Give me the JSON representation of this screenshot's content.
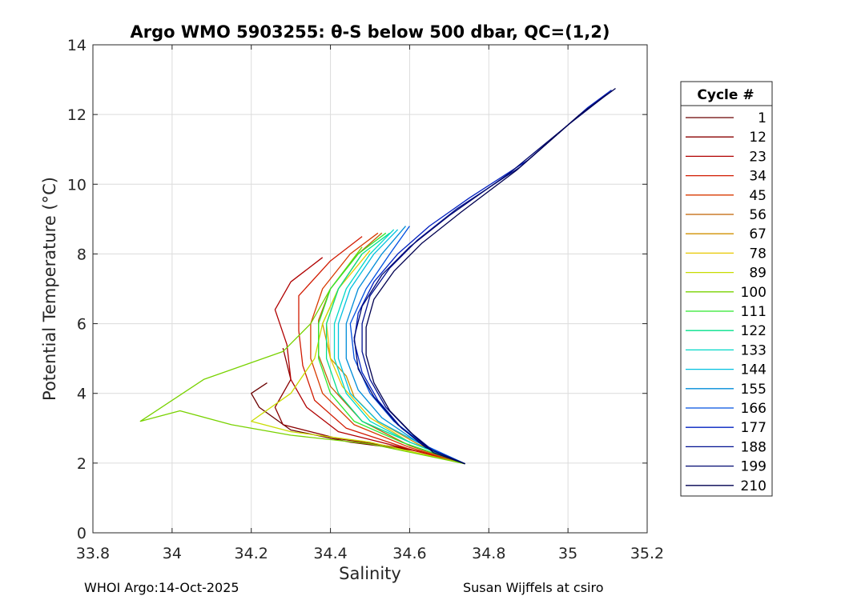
{
  "chart_data": {
    "type": "line",
    "title": "Argo WMO 5903255: θ-S below 500 dbar,  QC=(1,2)",
    "xlabel": "Salinity",
    "ylabel": "Potential Temperature (°C)",
    "xlim": [
      33.8,
      35.2
    ],
    "ylim": [
      0,
      14
    ],
    "xticks": [
      "33.8",
      "34",
      "34.2",
      "34.4",
      "34.6",
      "34.8",
      "35",
      "35.2"
    ],
    "yticks": [
      "0",
      "2",
      "4",
      "6",
      "8",
      "10",
      "12",
      "14"
    ],
    "grid": true,
    "legend_title": "Cycle #",
    "legend_position": "outside-right",
    "series": [
      {
        "name": "1",
        "color": "#6b0000",
        "points": [
          [
            34.74,
            1.98
          ],
          [
            34.62,
            2.35
          ],
          [
            34.45,
            2.6
          ],
          [
            34.3,
            2.95
          ],
          [
            34.22,
            3.6
          ],
          [
            34.2,
            4.0
          ],
          [
            34.24,
            4.3
          ]
        ]
      },
      {
        "name": "12",
        "color": "#8a0000",
        "points": [
          [
            34.74,
            1.98
          ],
          [
            34.6,
            2.4
          ],
          [
            34.42,
            2.7
          ],
          [
            34.28,
            3.1
          ],
          [
            34.26,
            3.6
          ],
          [
            34.3,
            4.4
          ],
          [
            34.28,
            5.3
          ]
        ]
      },
      {
        "name": "23",
        "color": "#b00000",
        "points": [
          [
            34.74,
            1.98
          ],
          [
            34.58,
            2.45
          ],
          [
            34.42,
            2.9
          ],
          [
            34.34,
            3.6
          ],
          [
            34.3,
            4.4
          ],
          [
            34.29,
            5.4
          ],
          [
            34.26,
            6.4
          ],
          [
            34.3,
            7.2
          ],
          [
            34.38,
            7.9
          ]
        ]
      },
      {
        "name": "34",
        "color": "#d11a00",
        "points": [
          [
            34.74,
            1.98
          ],
          [
            34.6,
            2.4
          ],
          [
            34.44,
            3.0
          ],
          [
            34.36,
            3.8
          ],
          [
            34.33,
            4.8
          ],
          [
            34.32,
            5.8
          ],
          [
            34.32,
            6.8
          ],
          [
            34.4,
            7.8
          ],
          [
            34.48,
            8.5
          ]
        ]
      },
      {
        "name": "45",
        "color": "#d83a00",
        "points": [
          [
            34.74,
            1.98
          ],
          [
            34.6,
            2.45
          ],
          [
            34.46,
            3.1
          ],
          [
            34.38,
            4.0
          ],
          [
            34.35,
            5.0
          ],
          [
            34.35,
            6.0
          ],
          [
            34.38,
            7.0
          ],
          [
            34.45,
            8.0
          ],
          [
            34.52,
            8.6
          ]
        ]
      },
      {
        "name": "56",
        "color": "#c06000",
        "points": [
          [
            34.74,
            1.98
          ],
          [
            34.6,
            2.5
          ],
          [
            34.48,
            3.2
          ],
          [
            34.4,
            4.2
          ],
          [
            34.37,
            5.1
          ],
          [
            34.37,
            6.1
          ],
          [
            34.4,
            7.0
          ],
          [
            34.47,
            8.0
          ],
          [
            34.53,
            8.6
          ]
        ]
      },
      {
        "name": "67",
        "color": "#d09000",
        "points": [
          [
            34.74,
            1.98
          ],
          [
            34.62,
            2.55
          ],
          [
            34.52,
            3.2
          ],
          [
            34.46,
            3.9
          ],
          [
            34.44,
            4.5
          ],
          [
            34.4,
            5.0
          ],
          [
            34.38,
            6.0
          ],
          [
            34.42,
            7.0
          ],
          [
            34.48,
            8.0
          ]
        ]
      },
      {
        "name": "78",
        "color": "#e8c800",
        "points": [
          [
            34.74,
            1.98
          ],
          [
            34.6,
            2.6
          ],
          [
            34.5,
            3.3
          ],
          [
            34.43,
            4.2
          ],
          [
            34.4,
            5.0
          ],
          [
            34.39,
            6.0
          ],
          [
            34.42,
            7.0
          ],
          [
            34.5,
            8.1
          ]
        ]
      },
      {
        "name": "89",
        "color": "#c8dc00",
        "points": [
          [
            34.74,
            1.98
          ],
          [
            34.5,
            2.6
          ],
          [
            34.3,
            2.9
          ],
          [
            34.2,
            3.2
          ],
          [
            34.3,
            4.0
          ],
          [
            34.36,
            5.0
          ],
          [
            34.38,
            6.0
          ],
          [
            34.42,
            7.0
          ]
        ]
      },
      {
        "name": "100",
        "color": "#78d200",
        "points": [
          [
            34.74,
            1.98
          ],
          [
            34.5,
            2.55
          ],
          [
            34.3,
            2.8
          ],
          [
            34.15,
            3.1
          ],
          [
            34.02,
            3.5
          ],
          [
            33.92,
            3.2
          ],
          [
            34.08,
            4.4
          ],
          [
            34.28,
            5.2
          ],
          [
            34.35,
            6.0
          ],
          [
            34.4,
            7.0
          ],
          [
            34.48,
            8.2
          ]
        ]
      },
      {
        "name": "111",
        "color": "#2ee82e",
        "points": [
          [
            34.74,
            1.98
          ],
          [
            34.58,
            2.6
          ],
          [
            34.46,
            3.2
          ],
          [
            34.4,
            4.0
          ],
          [
            34.37,
            5.0
          ],
          [
            34.37,
            6.0
          ],
          [
            34.4,
            7.0
          ],
          [
            34.47,
            8.0
          ],
          [
            34.54,
            8.6
          ]
        ]
      },
      {
        "name": "122",
        "color": "#00e08a",
        "points": [
          [
            34.74,
            1.98
          ],
          [
            34.6,
            2.6
          ],
          [
            34.48,
            3.2
          ],
          [
            34.42,
            4.0
          ],
          [
            34.39,
            5.0
          ],
          [
            34.39,
            6.0
          ],
          [
            34.42,
            7.0
          ],
          [
            34.48,
            8.0
          ],
          [
            34.55,
            8.6
          ]
        ]
      },
      {
        "name": "133",
        "color": "#00d8c8",
        "points": [
          [
            34.74,
            1.98
          ],
          [
            34.6,
            2.6
          ],
          [
            34.5,
            3.2
          ],
          [
            34.44,
            4.0
          ],
          [
            34.41,
            5.0
          ],
          [
            34.41,
            6.0
          ],
          [
            34.44,
            7.0
          ],
          [
            34.5,
            8.0
          ],
          [
            34.56,
            8.7
          ]
        ]
      },
      {
        "name": "144",
        "color": "#00c0e0",
        "points": [
          [
            34.74,
            1.98
          ],
          [
            34.62,
            2.6
          ],
          [
            34.52,
            3.2
          ],
          [
            34.45,
            4.0
          ],
          [
            34.42,
            5.0
          ],
          [
            34.42,
            6.0
          ],
          [
            34.45,
            7.0
          ],
          [
            34.51,
            8.0
          ],
          [
            34.57,
            8.7
          ]
        ]
      },
      {
        "name": "155",
        "color": "#008cd8",
        "points": [
          [
            34.74,
            1.98
          ],
          [
            34.62,
            2.6
          ],
          [
            34.53,
            3.3
          ],
          [
            34.47,
            4.1
          ],
          [
            34.44,
            5.0
          ],
          [
            34.44,
            6.0
          ],
          [
            34.47,
            7.0
          ],
          [
            34.53,
            8.0
          ],
          [
            34.59,
            8.8
          ]
        ]
      },
      {
        "name": "166",
        "color": "#0050e0",
        "points": [
          [
            34.74,
            1.98
          ],
          [
            34.64,
            2.5
          ],
          [
            34.56,
            3.2
          ],
          [
            34.5,
            4.0
          ],
          [
            34.46,
            5.0
          ],
          [
            34.45,
            6.0
          ],
          [
            34.49,
            7.0
          ],
          [
            34.55,
            8.0
          ],
          [
            34.6,
            8.8
          ]
        ]
      },
      {
        "name": "177",
        "color": "#0020c0",
        "points": [
          [
            34.74,
            1.98
          ],
          [
            34.65,
            2.4
          ],
          [
            34.58,
            3.0
          ],
          [
            34.52,
            3.8
          ],
          [
            34.48,
            4.6
          ],
          [
            34.46,
            5.5
          ],
          [
            34.47,
            6.3
          ],
          [
            34.51,
            7.2
          ],
          [
            34.57,
            8.0
          ],
          [
            34.65,
            8.8
          ],
          [
            34.75,
            9.6
          ],
          [
            34.9,
            10.7
          ],
          [
            35.05,
            12.2
          ],
          [
            35.11,
            12.7
          ]
        ]
      },
      {
        "name": "188",
        "color": "#001090",
        "points": [
          [
            34.74,
            1.98
          ],
          [
            34.66,
            2.35
          ],
          [
            34.6,
            2.9
          ],
          [
            34.54,
            3.6
          ],
          [
            34.5,
            4.4
          ],
          [
            34.48,
            5.2
          ],
          [
            34.48,
            6.0
          ],
          [
            34.5,
            6.8
          ],
          [
            34.55,
            7.6
          ],
          [
            34.62,
            8.4
          ],
          [
            34.72,
            9.3
          ],
          [
            34.88,
            10.5
          ],
          [
            35.02,
            11.9
          ],
          [
            35.1,
            12.6
          ]
        ]
      },
      {
        "name": "199",
        "color": "#000870",
        "points": [
          [
            34.74,
            1.98
          ],
          [
            34.64,
            2.45
          ],
          [
            34.57,
            3.1
          ],
          [
            34.51,
            3.9
          ],
          [
            34.47,
            4.7
          ],
          [
            34.46,
            5.6
          ],
          [
            34.48,
            6.5
          ],
          [
            34.53,
            7.4
          ],
          [
            34.6,
            8.2
          ],
          [
            34.7,
            9.1
          ],
          [
            34.85,
            10.3
          ],
          [
            35.0,
            11.7
          ],
          [
            35.09,
            12.5
          ]
        ]
      },
      {
        "name": "210",
        "color": "#000050",
        "points": [
          [
            34.74,
            1.98
          ],
          [
            34.66,
            2.3
          ],
          [
            34.61,
            2.8
          ],
          [
            34.55,
            3.5
          ],
          [
            34.51,
            4.3
          ],
          [
            34.49,
            5.1
          ],
          [
            34.49,
            5.9
          ],
          [
            34.51,
            6.7
          ],
          [
            34.56,
            7.5
          ],
          [
            34.63,
            8.3
          ],
          [
            34.73,
            9.2
          ],
          [
            34.87,
            10.4
          ],
          [
            35.03,
            12.0
          ],
          [
            35.12,
            12.75
          ]
        ]
      }
    ]
  },
  "footer": {
    "left": "WHOI Argo:14-Oct-2025",
    "right": "Susan Wijffels at csiro"
  }
}
